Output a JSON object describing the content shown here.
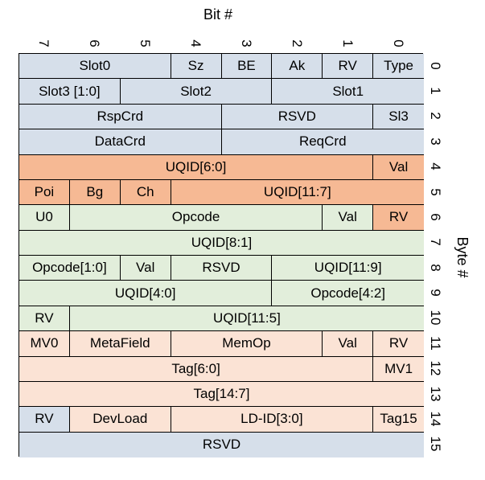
{
  "header": {
    "bit_title": "Bit #",
    "byte_title": "Byte #",
    "bit_numbers": [
      "7",
      "6",
      "5",
      "4",
      "3",
      "2",
      "1",
      "0"
    ],
    "byte_numbers": [
      "0",
      "1",
      "2",
      "3",
      "4",
      "5",
      "6",
      "7",
      "8",
      "9",
      "10",
      "11",
      "12",
      "13",
      "14",
      "15"
    ]
  },
  "colors": {
    "blue": "#d6dfea",
    "orange": "#f6b994",
    "green": "#e2eedb",
    "peach": "#fbe3d5"
  },
  "rows": [
    [
      {
        "label": "Slot0",
        "bits": 3,
        "color": "blue"
      },
      {
        "label": "Sz",
        "bits": 1,
        "color": "blue"
      },
      {
        "label": "BE",
        "bits": 1,
        "color": "blue"
      },
      {
        "label": "Ak",
        "bits": 1,
        "color": "blue"
      },
      {
        "label": "RV",
        "bits": 1,
        "color": "blue"
      },
      {
        "label": "Type",
        "bits": 1,
        "color": "blue"
      }
    ],
    [
      {
        "label": "Slot3 [1:0]",
        "bits": 2,
        "color": "blue"
      },
      {
        "label": "Slot2",
        "bits": 3,
        "color": "blue"
      },
      {
        "label": "Slot1",
        "bits": 3,
        "color": "blue"
      }
    ],
    [
      {
        "label": "RspCrd",
        "bits": 4,
        "color": "blue"
      },
      {
        "label": "RSVD",
        "bits": 3,
        "color": "blue"
      },
      {
        "label": "Sl3",
        "bits": 1,
        "color": "blue"
      }
    ],
    [
      {
        "label": "DataCrd",
        "bits": 4,
        "color": "blue"
      },
      {
        "label": "ReqCrd",
        "bits": 4,
        "color": "blue"
      }
    ],
    [
      {
        "label": "UQID[6:0]",
        "bits": 7,
        "color": "orange"
      },
      {
        "label": "Val",
        "bits": 1,
        "color": "orange"
      }
    ],
    [
      {
        "label": "Poi",
        "bits": 1,
        "color": "orange"
      },
      {
        "label": "Bg",
        "bits": 1,
        "color": "orange"
      },
      {
        "label": "Ch",
        "bits": 1,
        "color": "orange"
      },
      {
        "label": "UQID[11:7]",
        "bits": 5,
        "color": "orange"
      }
    ],
    [
      {
        "label": "U0",
        "bits": 1,
        "color": "green"
      },
      {
        "label": "Opcode",
        "bits": 5,
        "color": "green"
      },
      {
        "label": "Val",
        "bits": 1,
        "color": "green"
      },
      {
        "label": "RV",
        "bits": 1,
        "color": "orange"
      }
    ],
    [
      {
        "label": "UQID[8:1]",
        "bits": 8,
        "color": "green"
      }
    ],
    [
      {
        "label": "Opcode[1:0]",
        "bits": 2,
        "color": "green"
      },
      {
        "label": "Val",
        "bits": 1,
        "color": "green"
      },
      {
        "label": "RSVD",
        "bits": 2,
        "color": "green"
      },
      {
        "label": "UQID[11:9]",
        "bits": 3,
        "color": "green"
      }
    ],
    [
      {
        "label": "UQID[4:0]",
        "bits": 5,
        "color": "green"
      },
      {
        "label": "Opcode[4:2]",
        "bits": 3,
        "color": "green"
      }
    ],
    [
      {
        "label": "RV",
        "bits": 1,
        "color": "green"
      },
      {
        "label": "UQID[11:5]",
        "bits": 7,
        "color": "green"
      }
    ],
    [
      {
        "label": "MV0",
        "bits": 1,
        "color": "peach"
      },
      {
        "label": "MetaField",
        "bits": 2,
        "color": "peach"
      },
      {
        "label": "MemOp",
        "bits": 3,
        "color": "peach"
      },
      {
        "label": "Val",
        "bits": 1,
        "color": "peach"
      },
      {
        "label": "RV",
        "bits": 1,
        "color": "peach"
      }
    ],
    [
      {
        "label": "Tag[6:0]",
        "bits": 7,
        "color": "peach"
      },
      {
        "label": "MV1",
        "bits": 1,
        "color": "peach"
      }
    ],
    [
      {
        "label": "Tag[14:7]",
        "bits": 8,
        "color": "peach"
      }
    ],
    [
      {
        "label": "RV",
        "bits": 1,
        "color": "blue"
      },
      {
        "label": "DevLoad",
        "bits": 2,
        "color": "peach"
      },
      {
        "label": "LD-ID[3:0]",
        "bits": 4,
        "color": "peach"
      },
      {
        "label": "Tag15",
        "bits": 1,
        "color": "peach"
      }
    ],
    [
      {
        "label": "RSVD",
        "bits": 8,
        "color": "blue"
      }
    ]
  ]
}
